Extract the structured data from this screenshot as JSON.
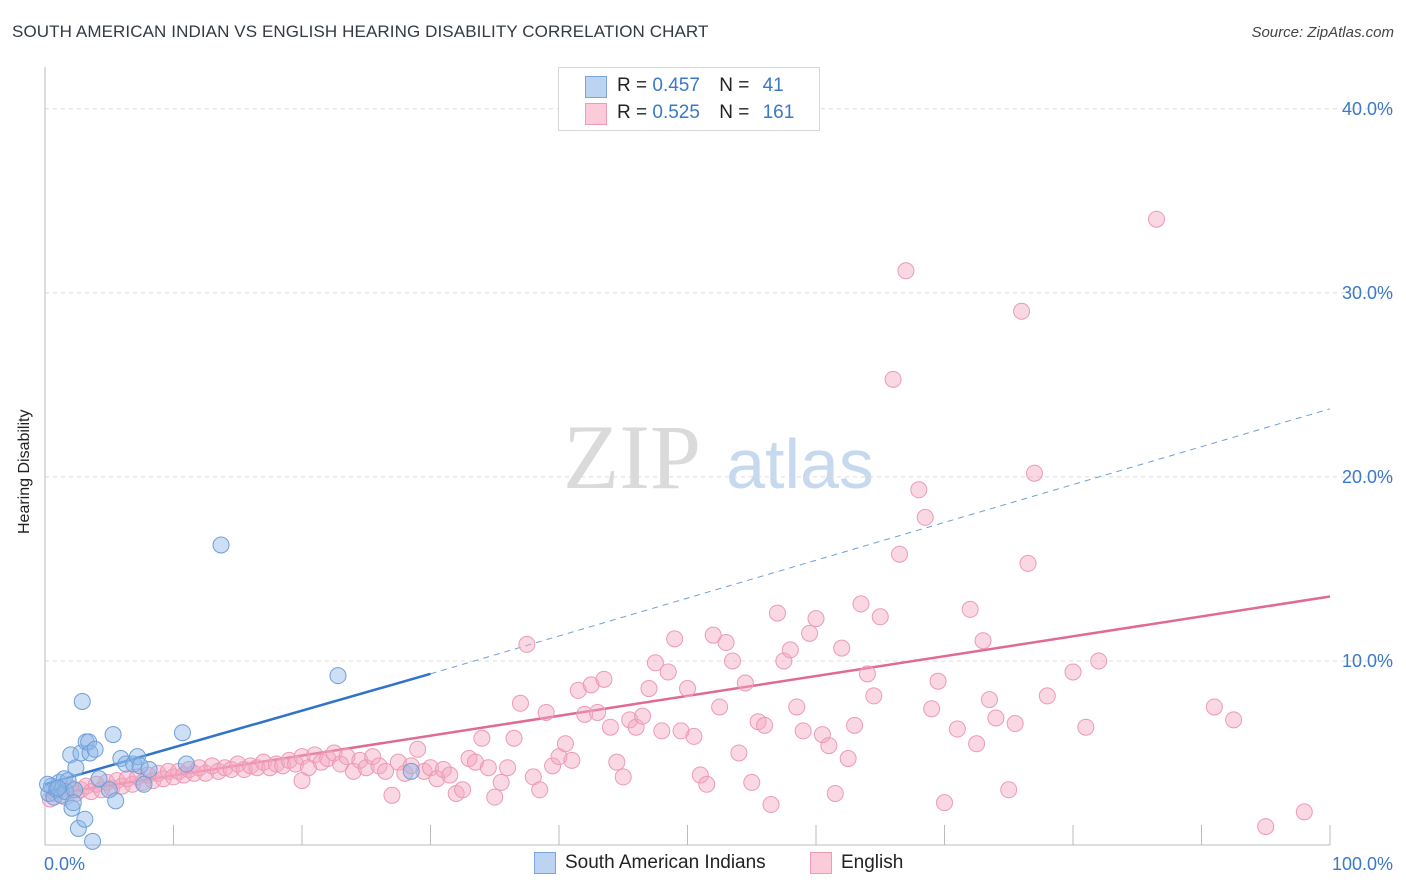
{
  "title": "SOUTH AMERICAN INDIAN VS ENGLISH HEARING DISABILITY CORRELATION CHART",
  "source": "Source: ZipAtlas.com",
  "watermark": {
    "zip": "ZIP",
    "atlas": "atlas"
  },
  "legend": {
    "r_label": "R =",
    "n_label": "N =",
    "series": [
      {
        "name": "South American Indians",
        "r": "0.457",
        "n": "41",
        "color": "#8fb8e8",
        "line_color": "#2f74c8"
      },
      {
        "name": "English",
        "r": "0.525",
        "n": "161",
        "color": "#f5a9c0",
        "line_color": "#e06a92"
      }
    ]
  },
  "chart_data": {
    "type": "scatter",
    "title": "SOUTH AMERICAN INDIAN VS ENGLISH HEARING DISABILITY CORRELATION CHART",
    "xlabel": "",
    "ylabel": "Hearing Disability",
    "xlim": [
      0,
      100
    ],
    "ylim": [
      0,
      42
    ],
    "x_tick_labels": [
      "0.0%",
      "100.0%"
    ],
    "y_ticks": [
      10,
      20,
      30,
      40
    ],
    "y_tick_labels": [
      "10.0%",
      "20.0%",
      "30.0%",
      "40.0%"
    ],
    "grid": "horizontal dashed",
    "legend_position": "top-center",
    "series": [
      {
        "name": "South American Indians",
        "color": "#8fb8e8",
        "trend": {
          "x0": 0,
          "y0": 3.3,
          "x1": 30,
          "y1": 9.3,
          "dashed_to_x": 100,
          "dashed_to_y": 23.7
        },
        "points": [
          [
            0.3,
            2.8
          ],
          [
            0.5,
            3.2
          ],
          [
            0.7,
            2.6
          ],
          [
            0.9,
            3.0
          ],
          [
            1.1,
            3.4
          ],
          [
            1.3,
            2.7
          ],
          [
            1.5,
            3.6
          ],
          [
            1.6,
            2.9
          ],
          [
            1.8,
            3.5
          ],
          [
            2.0,
            4.9
          ],
          [
            2.1,
            2.0
          ],
          [
            2.3,
            3.0
          ],
          [
            2.4,
            4.2
          ],
          [
            2.6,
            0.9
          ],
          [
            2.8,
            5.0
          ],
          [
            2.9,
            7.8
          ],
          [
            3.1,
            1.4
          ],
          [
            3.2,
            5.6
          ],
          [
            3.4,
            5.6
          ],
          [
            3.5,
            5.0
          ],
          [
            3.7,
            0.2
          ],
          [
            3.9,
            5.2
          ],
          [
            4.2,
            3.6
          ],
          [
            5.0,
            3.0
          ],
          [
            5.3,
            6.0
          ],
          [
            5.5,
            2.4
          ],
          [
            5.9,
            4.7
          ],
          [
            6.3,
            4.4
          ],
          [
            6.9,
            4.4
          ],
          [
            7.2,
            4.8
          ],
          [
            7.4,
            4.3
          ],
          [
            7.7,
            3.3
          ],
          [
            8.1,
            4.1
          ],
          [
            10.7,
            6.1
          ],
          [
            11.0,
            4.4
          ],
          [
            13.7,
            16.3
          ],
          [
            22.8,
            9.2
          ],
          [
            28.5,
            4.0
          ],
          [
            0.2,
            3.3
          ],
          [
            1.0,
            3.1
          ],
          [
            2.2,
            2.3
          ]
        ]
      },
      {
        "name": "English",
        "color": "#f5a9c0",
        "trend": {
          "x0": 0,
          "y0": 2.7,
          "x1": 100,
          "y1": 13.5
        },
        "points": [
          [
            0.4,
            2.5
          ],
          [
            0.8,
            2.8
          ],
          [
            1.2,
            3.0
          ],
          [
            1.6,
            2.6
          ],
          [
            2.0,
            3.1
          ],
          [
            2.4,
            2.8
          ],
          [
            2.8,
            3.0
          ],
          [
            3.2,
            3.2
          ],
          [
            3.6,
            2.9
          ],
          [
            4.0,
            3.3
          ],
          [
            4.4,
            3.0
          ],
          [
            4.8,
            3.4
          ],
          [
            5.2,
            3.1
          ],
          [
            5.6,
            3.5
          ],
          [
            6.0,
            3.2
          ],
          [
            6.4,
            3.6
          ],
          [
            6.8,
            3.3
          ],
          [
            7.2,
            3.7
          ],
          [
            7.6,
            3.4
          ],
          [
            8.0,
            3.8
          ],
          [
            8.4,
            3.5
          ],
          [
            8.8,
            3.9
          ],
          [
            9.2,
            3.6
          ],
          [
            9.6,
            4.0
          ],
          [
            10.0,
            3.7
          ],
          [
            10.4,
            4.0
          ],
          [
            10.8,
            3.8
          ],
          [
            11.2,
            4.1
          ],
          [
            11.6,
            3.9
          ],
          [
            12.0,
            4.2
          ],
          [
            12.5,
            3.9
          ],
          [
            13.0,
            4.3
          ],
          [
            13.5,
            4.0
          ],
          [
            14.0,
            4.2
          ],
          [
            14.5,
            4.1
          ],
          [
            15.0,
            4.4
          ],
          [
            15.5,
            4.1
          ],
          [
            16.0,
            4.3
          ],
          [
            16.5,
            4.2
          ],
          [
            17.0,
            4.5
          ],
          [
            17.5,
            4.2
          ],
          [
            18.0,
            4.4
          ],
          [
            18.5,
            4.3
          ],
          [
            19.0,
            4.6
          ],
          [
            19.5,
            4.4
          ],
          [
            20.0,
            4.8
          ],
          [
            20.5,
            4.2
          ],
          [
            21.0,
            4.9
          ],
          [
            21.5,
            4.5
          ],
          [
            22.0,
            4.7
          ],
          [
            22.5,
            5.0
          ],
          [
            23.0,
            4.4
          ],
          [
            23.5,
            4.8
          ],
          [
            24.0,
            4.0
          ],
          [
            24.5,
            4.6
          ],
          [
            25.0,
            4.2
          ],
          [
            25.5,
            4.8
          ],
          [
            26.0,
            4.3
          ],
          [
            26.5,
            4.0
          ],
          [
            27.0,
            2.7
          ],
          [
            27.5,
            4.5
          ],
          [
            28.0,
            3.9
          ],
          [
            28.5,
            4.3
          ],
          [
            29.0,
            5.2
          ],
          [
            29.5,
            4.0
          ],
          [
            30.0,
            4.2
          ],
          [
            30.5,
            3.6
          ],
          [
            31.0,
            4.1
          ],
          [
            31.5,
            3.8
          ],
          [
            32.0,
            2.8
          ],
          [
            32.5,
            3.0
          ],
          [
            33.0,
            4.7
          ],
          [
            33.5,
            4.5
          ],
          [
            34.0,
            5.8
          ],
          [
            34.5,
            4.2
          ],
          [
            35.0,
            2.6
          ],
          [
            35.5,
            3.4
          ],
          [
            36.0,
            4.2
          ],
          [
            36.5,
            5.8
          ],
          [
            37.0,
            7.7
          ],
          [
            37.5,
            10.9
          ],
          [
            38.0,
            3.7
          ],
          [
            38.5,
            3.0
          ],
          [
            39.0,
            7.2
          ],
          [
            39.5,
            4.3
          ],
          [
            40.0,
            4.8
          ],
          [
            40.5,
            5.5
          ],
          [
            41.0,
            4.6
          ],
          [
            41.5,
            8.4
          ],
          [
            42.0,
            7.1
          ],
          [
            42.5,
            8.7
          ],
          [
            43.0,
            7.2
          ],
          [
            43.5,
            9.0
          ],
          [
            44.0,
            6.4
          ],
          [
            44.5,
            4.5
          ],
          [
            45.0,
            3.7
          ],
          [
            45.5,
            6.8
          ],
          [
            46.0,
            6.4
          ],
          [
            46.5,
            7.0
          ],
          [
            47.0,
            8.5
          ],
          [
            47.5,
            9.9
          ],
          [
            48.0,
            6.2
          ],
          [
            48.5,
            9.4
          ],
          [
            49.0,
            11.2
          ],
          [
            49.5,
            6.2
          ],
          [
            50.0,
            8.5
          ],
          [
            50.5,
            5.9
          ],
          [
            51.0,
            3.8
          ],
          [
            51.5,
            3.3
          ],
          [
            52.0,
            11.4
          ],
          [
            52.5,
            7.5
          ],
          [
            53.0,
            11.0
          ],
          [
            53.5,
            10.0
          ],
          [
            54.0,
            5.0
          ],
          [
            54.5,
            8.8
          ],
          [
            55.0,
            3.4
          ],
          [
            55.5,
            6.7
          ],
          [
            56.0,
            6.5
          ],
          [
            56.5,
            2.2
          ],
          [
            57.0,
            12.6
          ],
          [
            57.5,
            10.0
          ],
          [
            58.0,
            10.6
          ],
          [
            58.5,
            7.5
          ],
          [
            59.0,
            6.2
          ],
          [
            59.5,
            11.5
          ],
          [
            60.0,
            12.3
          ],
          [
            60.5,
            6.0
          ],
          [
            61.0,
            5.4
          ],
          [
            61.5,
            2.8
          ],
          [
            62.0,
            10.7
          ],
          [
            62.5,
            4.7
          ],
          [
            63.0,
            6.5
          ],
          [
            63.5,
            13.1
          ],
          [
            64.0,
            9.3
          ],
          [
            64.5,
            8.1
          ],
          [
            65.0,
            12.4
          ],
          [
            66.0,
            25.3
          ],
          [
            66.5,
            15.8
          ],
          [
            67.0,
            31.2
          ],
          [
            68.0,
            19.3
          ],
          [
            68.5,
            17.8
          ],
          [
            69.0,
            7.4
          ],
          [
            69.5,
            8.9
          ],
          [
            70.0,
            2.3
          ],
          [
            71.0,
            6.3
          ],
          [
            72.0,
            12.8
          ],
          [
            72.5,
            5.5
          ],
          [
            73.0,
            11.1
          ],
          [
            73.5,
            7.9
          ],
          [
            74.0,
            6.9
          ],
          [
            75.0,
            3.0
          ],
          [
            75.5,
            6.6
          ],
          [
            76.0,
            29.0
          ],
          [
            76.5,
            15.3
          ],
          [
            77.0,
            20.2
          ],
          [
            78.0,
            8.1
          ],
          [
            80.0,
            9.4
          ],
          [
            81.0,
            6.4
          ],
          [
            82.0,
            10.0
          ],
          [
            86.5,
            34.0
          ],
          [
            91.0,
            7.5
          ],
          [
            92.5,
            6.8
          ],
          [
            95.0,
            1.0
          ],
          [
            98.0,
            1.8
          ],
          [
            20.0,
            3.5
          ]
        ]
      }
    ]
  },
  "bottom_legend": [
    "South American Indians",
    "English"
  ]
}
